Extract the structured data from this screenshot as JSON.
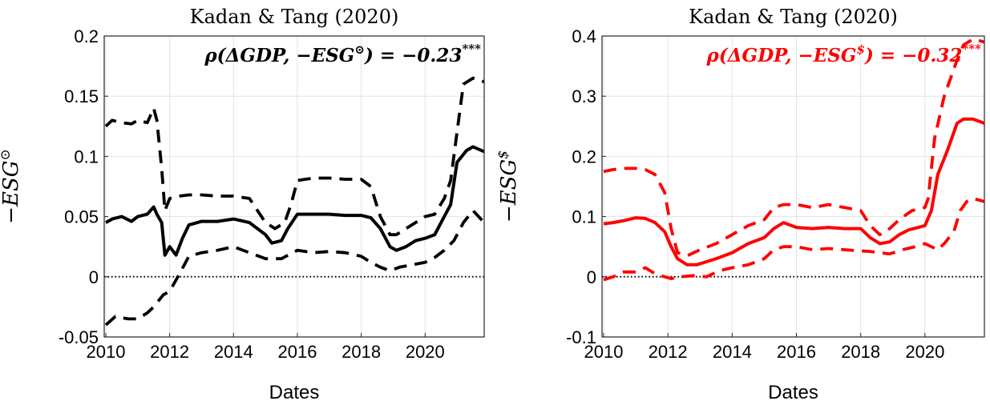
{
  "chart_data": [
    {
      "type": "line",
      "title": "Kadan & Tang (2020)",
      "xlabel": "Dates",
      "ylabel": "−ESG",
      "ylabel_sup": "⊙",
      "annotation": "ρ(ΔGDP, −ESG",
      "annotation_sup": "⊙",
      "annotation_tail": ") = −0.23",
      "annotation_stars": "***",
      "color": "#000000",
      "xlim": [
        2009.95,
        2021.85
      ],
      "ylim": [
        -0.05,
        0.2
      ],
      "xticks": [
        2010,
        2012,
        2014,
        2016,
        2018,
        2020
      ],
      "xtick_labels": [
        "2010",
        "2012",
        "2014",
        "2016",
        "2018",
        "2020"
      ],
      "yticks": [
        -0.05,
        0,
        0.05,
        0.1,
        0.15,
        0.2
      ],
      "ytick_labels": [
        "-0.05",
        "0",
        "0.05",
        "0.1",
        "0.15",
        "0.2"
      ],
      "grid": true,
      "zero_line": 0,
      "series": [
        {
          "style": "solid",
          "x": [
            2010,
            2010.2,
            2010.5,
            2010.8,
            2011,
            2011.3,
            2011.5,
            2011.6,
            2011.75,
            2011.85,
            2012,
            2012.2,
            2012.4,
            2012.6,
            2013,
            2013.5,
            2014,
            2014.5,
            2015,
            2015.2,
            2015.5,
            2015.7,
            2016,
            2016.5,
            2017,
            2017.5,
            2018,
            2018.3,
            2018.6,
            2018.9,
            2019.1,
            2019.4,
            2019.7,
            2020,
            2020.3,
            2020.6,
            2020.8,
            2021,
            2021.3,
            2021.5,
            2021.85
          ],
          "y": [
            0.045,
            0.048,
            0.05,
            0.046,
            0.05,
            0.052,
            0.058,
            0.052,
            0.045,
            0.018,
            0.025,
            0.018,
            0.032,
            0.043,
            0.046,
            0.046,
            0.048,
            0.045,
            0.035,
            0.028,
            0.03,
            0.04,
            0.052,
            0.052,
            0.052,
            0.051,
            0.051,
            0.049,
            0.04,
            0.025,
            0.022,
            0.025,
            0.03,
            0.032,
            0.035,
            0.05,
            0.06,
            0.095,
            0.105,
            0.108,
            0.104
          ]
        },
        {
          "style": "dashed",
          "x": [
            2010,
            2010.2,
            2010.5,
            2010.8,
            2011,
            2011.3,
            2011.5,
            2011.6,
            2011.75,
            2011.85,
            2012,
            2012.3,
            2012.6,
            2013,
            2013.5,
            2014,
            2014.5,
            2015,
            2015.3,
            2015.6,
            2015.8,
            2016,
            2016.5,
            2017,
            2017.5,
            2018,
            2018.3,
            2018.6,
            2018.9,
            2019.1,
            2019.4,
            2019.7,
            2020,
            2020.3,
            2020.6,
            2020.8,
            2021,
            2021.2,
            2021.5,
            2021.85
          ],
          "y": [
            0.125,
            0.13,
            0.128,
            0.127,
            0.13,
            0.128,
            0.14,
            0.13,
            0.09,
            0.055,
            0.065,
            0.067,
            0.068,
            0.068,
            0.067,
            0.067,
            0.065,
            0.045,
            0.04,
            0.045,
            0.06,
            0.08,
            0.082,
            0.082,
            0.081,
            0.081,
            0.075,
            0.05,
            0.035,
            0.035,
            0.04,
            0.045,
            0.05,
            0.052,
            0.065,
            0.08,
            0.12,
            0.16,
            0.165,
            0.162
          ]
        },
        {
          "style": "dashed",
          "x": [
            2010,
            2010.3,
            2010.7,
            2011,
            2011.3,
            2011.5,
            2011.8,
            2012,
            2012.3,
            2012.6,
            2013,
            2013.5,
            2014,
            2014.5,
            2015,
            2015.5,
            2016,
            2016.5,
            2017,
            2017.5,
            2018,
            2018.3,
            2018.6,
            2018.9,
            2019.2,
            2019.6,
            2020,
            2020.3,
            2020.6,
            2020.9,
            2021.2,
            2021.5,
            2021.85
          ],
          "y": [
            -0.04,
            -0.033,
            -0.035,
            -0.035,
            -0.03,
            -0.025,
            -0.015,
            -0.012,
            0.002,
            0.017,
            0.02,
            0.022,
            0.025,
            0.02,
            0.015,
            0.015,
            0.022,
            0.02,
            0.021,
            0.02,
            0.017,
            0.012,
            0.008,
            0.005,
            0.008,
            0.01,
            0.012,
            0.016,
            0.022,
            0.03,
            0.045,
            0.055,
            0.045
          ]
        }
      ]
    },
    {
      "type": "line",
      "title": "Kadan & Tang (2020)",
      "xlabel": "Dates",
      "ylabel": "−ESG",
      "ylabel_sup": "$",
      "annotation": "ρ(ΔGDP, −ESG",
      "annotation_sup": "$",
      "annotation_tail": ") = −0.32",
      "annotation_stars": "***",
      "color": "#ff0000",
      "xlim": [
        2009.95,
        2021.85
      ],
      "ylim": [
        -0.1,
        0.4
      ],
      "xticks": [
        2010,
        2012,
        2014,
        2016,
        2018,
        2020
      ],
      "xtick_labels": [
        "2010",
        "2012",
        "2014",
        "2016",
        "2018",
        "2020"
      ],
      "yticks": [
        -0.1,
        0,
        0.1,
        0.2,
        0.3,
        0.4
      ],
      "ytick_labels": [
        "-0.1",
        "0",
        "0.1",
        "0.2",
        "0.3",
        "0.4"
      ],
      "grid": true,
      "zero_line": 0,
      "series": [
        {
          "style": "solid",
          "x": [
            2010,
            2010.3,
            2010.6,
            2011,
            2011.3,
            2011.6,
            2011.9,
            2012.1,
            2012.3,
            2012.6,
            2012.9,
            2013.2,
            2013.5,
            2014,
            2014.5,
            2015,
            2015.3,
            2015.6,
            2016,
            2016.5,
            2017,
            2017.5,
            2018,
            2018.3,
            2018.6,
            2018.9,
            2019.2,
            2019.5,
            2019.8,
            2020,
            2020.2,
            2020.4,
            2020.7,
            2021,
            2021.2,
            2021.5,
            2021.85
          ],
          "y": [
            0.088,
            0.09,
            0.093,
            0.098,
            0.097,
            0.09,
            0.075,
            0.05,
            0.03,
            0.02,
            0.02,
            0.025,
            0.03,
            0.04,
            0.055,
            0.065,
            0.08,
            0.09,
            0.082,
            0.08,
            0.082,
            0.08,
            0.08,
            0.065,
            0.055,
            0.058,
            0.07,
            0.078,
            0.082,
            0.085,
            0.11,
            0.17,
            0.21,
            0.255,
            0.262,
            0.262,
            0.255
          ]
        },
        {
          "style": "dashed",
          "x": [
            2010,
            2010.3,
            2010.6,
            2011,
            2011.3,
            2011.6,
            2011.9,
            2012.1,
            2012.3,
            2012.6,
            2013,
            2013.5,
            2014,
            2014.5,
            2015,
            2015.3,
            2015.6,
            2016,
            2016.5,
            2017,
            2017.5,
            2018,
            2018.3,
            2018.6,
            2018.9,
            2019.2,
            2019.6,
            2020,
            2020.1,
            2020.3,
            2020.6,
            2021,
            2021.2,
            2021.5,
            2021.85
          ],
          "y": [
            0.175,
            0.178,
            0.18,
            0.18,
            0.178,
            0.17,
            0.14,
            0.08,
            0.04,
            0.035,
            0.045,
            0.055,
            0.07,
            0.085,
            0.095,
            0.115,
            0.12,
            0.12,
            0.115,
            0.12,
            0.115,
            0.11,
            0.085,
            0.07,
            0.08,
            0.095,
            0.11,
            0.115,
            0.13,
            0.23,
            0.3,
            0.36,
            0.385,
            0.395,
            0.39
          ]
        },
        {
          "style": "dashed",
          "x": [
            2010,
            2010.3,
            2010.6,
            2011,
            2011.3,
            2011.6,
            2011.9,
            2012.1,
            2012.4,
            2012.8,
            2013.2,
            2013.6,
            2014,
            2014.5,
            2015,
            2015.3,
            2015.6,
            2016,
            2016.5,
            2017,
            2017.5,
            2018,
            2018.3,
            2018.6,
            2018.9,
            2019.3,
            2019.7,
            2020,
            2020.2,
            2020.4,
            2020.6,
            2020.9,
            2021.1,
            2021.3,
            2021.5,
            2021.85
          ],
          "y": [
            -0.005,
            0.0,
            0.008,
            0.008,
            0.015,
            0.005,
            0.0,
            -0.003,
            0.0,
            0.002,
            0.0,
            0.01,
            0.015,
            0.02,
            0.03,
            0.045,
            0.05,
            0.05,
            0.045,
            0.047,
            0.045,
            0.043,
            0.042,
            0.04,
            0.038,
            0.045,
            0.05,
            0.055,
            0.05,
            0.045,
            0.055,
            0.075,
            0.11,
            0.125,
            0.13,
            0.125
          ]
        }
      ]
    }
  ]
}
